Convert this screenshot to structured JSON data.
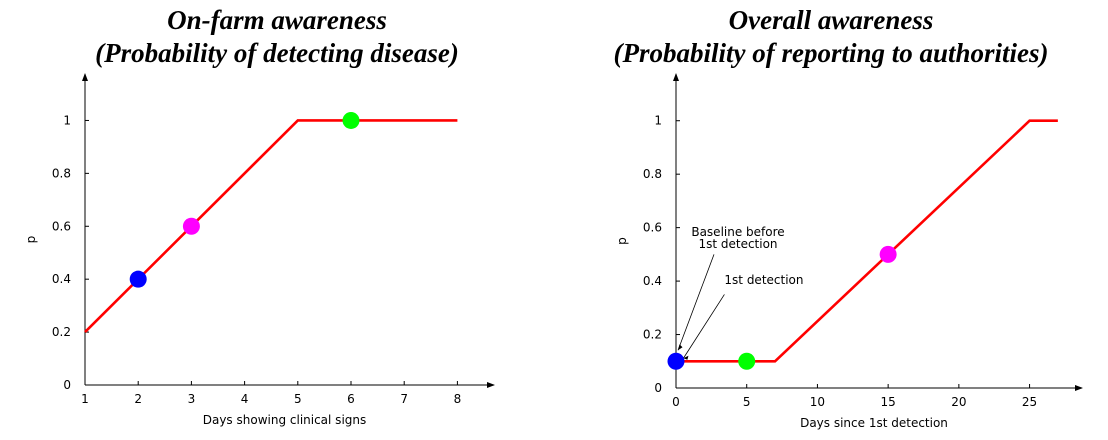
{
  "chart_data": [
    {
      "type": "line",
      "title": "On-farm awareness",
      "subtitle": "(Probability of detecting disease)",
      "xlabel": "Days showing clinical signs",
      "ylabel": "p",
      "xlim": [
        1,
        8.5
      ],
      "ylim": [
        0,
        1.1
      ],
      "x_ticks": [
        1,
        2,
        3,
        4,
        5,
        6,
        7,
        8
      ],
      "y_ticks": [
        0,
        0.2,
        0.4,
        0.6,
        0.8,
        1
      ],
      "y_tick_labels": [
        "0",
        "0.2",
        "0.4",
        "0.6",
        "0.8",
        "1"
      ],
      "grid": false,
      "line_color": "#ff0000",
      "series": [
        {
          "x": [
            1,
            5,
            8
          ],
          "y": [
            0.2,
            1,
            1
          ]
        }
      ],
      "points": [
        {
          "x": 2,
          "y": 0.4,
          "color": "#0000ff"
        },
        {
          "x": 3,
          "y": 0.6,
          "color": "#ff00ff"
        },
        {
          "x": 6,
          "y": 1.0,
          "color": "#00ff00"
        }
      ],
      "annotations": []
    },
    {
      "type": "line",
      "title": "Overall awareness",
      "subtitle": "(Probability of reporting to authorities)",
      "xlabel": "Days since 1st detection",
      "ylabel": "p",
      "xlim": [
        0,
        28
      ],
      "ylim": [
        0,
        1.1
      ],
      "x_ticks": [
        0,
        5,
        10,
        15,
        20,
        25
      ],
      "y_ticks": [
        0,
        0.2,
        0.4,
        0.6,
        0.8,
        1
      ],
      "y_tick_labels": [
        "0",
        "0.2",
        "0.4",
        "0.6",
        "0.8",
        "1"
      ],
      "grid": false,
      "line_color": "#ff0000",
      "series": [
        {
          "x": [
            0,
            7,
            25,
            27
          ],
          "y": [
            0.1,
            0.1,
            1,
            1
          ]
        }
      ],
      "points": [
        {
          "x": 0,
          "y": 0.1,
          "color": "#0000ff"
        },
        {
          "x": 5,
          "y": 0.1,
          "color": "#00ff00"
        },
        {
          "x": 15,
          "y": 0.5,
          "color": "#ff00ff"
        }
      ],
      "annotations": [
        {
          "lines": [
            "Baseline before",
            "1st detection"
          ],
          "x": 0,
          "y": 0.1
        },
        {
          "lines": [
            "1st detection"
          ],
          "x": 0.1,
          "y": 0.1
        }
      ]
    }
  ]
}
